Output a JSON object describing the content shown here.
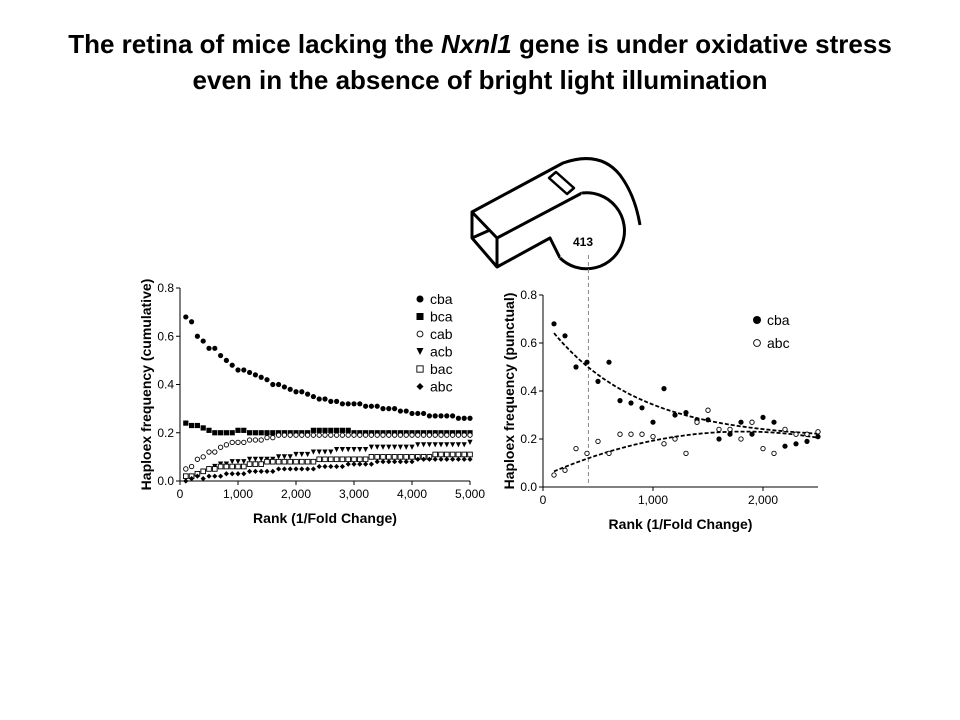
{
  "slide": {
    "title_part1": "The retina of mice lacking the ",
    "title_gene": "Nxnl1",
    "title_part2": " gene is under oxidative stress",
    "title_line2": "even in the absence of bright light illumination",
    "whistle_label": "413"
  },
  "chart_data": [
    {
      "type": "scatter",
      "xlabel": "Rank (1/Fold Change)",
      "ylabel": "Haploex frequency (cumulative)",
      "xlim": [
        0,
        5000
      ],
      "ylim": [
        0,
        0.8
      ],
      "xticks": [
        "0",
        "1,000",
        "2,000",
        "3,000",
        "4,000",
        "5,000"
      ],
      "yticks": [
        "0.0",
        "0.2",
        "0.4",
        "0.6",
        "0.8"
      ],
      "grid": false,
      "legend_position": "top-right",
      "x": [
        100,
        200,
        300,
        400,
        500,
        600,
        700,
        800,
        900,
        1000,
        1100,
        1200,
        1300,
        1400,
        1500,
        1600,
        1700,
        1800,
        1900,
        2000,
        2100,
        2200,
        2300,
        2400,
        2500,
        2600,
        2700,
        2800,
        2900,
        3000,
        3100,
        3200,
        3300,
        3400,
        3500,
        3600,
        3700,
        3800,
        3900,
        4000,
        4100,
        4200,
        4300,
        4400,
        4500,
        4600,
        4700,
        4800,
        4900,
        5000
      ],
      "series": [
        {
          "name": "cba",
          "marker": "filled-circle",
          "values": [
            0.68,
            0.66,
            0.6,
            0.58,
            0.55,
            0.55,
            0.52,
            0.5,
            0.48,
            0.46,
            0.46,
            0.45,
            0.44,
            0.43,
            0.42,
            0.4,
            0.4,
            0.39,
            0.38,
            0.37,
            0.37,
            0.36,
            0.35,
            0.34,
            0.34,
            0.33,
            0.33,
            0.32,
            0.32,
            0.32,
            0.32,
            0.31,
            0.31,
            0.31,
            0.3,
            0.3,
            0.3,
            0.29,
            0.29,
            0.28,
            0.28,
            0.28,
            0.27,
            0.27,
            0.27,
            0.27,
            0.27,
            0.26,
            0.26,
            0.26
          ]
        },
        {
          "name": "bca",
          "marker": "filled-square",
          "values": [
            0.24,
            0.23,
            0.23,
            0.22,
            0.21,
            0.2,
            0.2,
            0.2,
            0.2,
            0.21,
            0.21,
            0.2,
            0.2,
            0.2,
            0.2,
            0.2,
            0.2,
            0.2,
            0.2,
            0.2,
            0.2,
            0.2,
            0.21,
            0.21,
            0.21,
            0.21,
            0.21,
            0.21,
            0.21,
            0.2,
            0.2,
            0.2,
            0.2,
            0.2,
            0.2,
            0.2,
            0.2,
            0.2,
            0.2,
            0.2,
            0.2,
            0.2,
            0.2,
            0.2,
            0.2,
            0.2,
            0.2,
            0.2,
            0.2,
            0.2
          ]
        },
        {
          "name": "cab",
          "marker": "open-circle",
          "values": [
            0.05,
            0.06,
            0.09,
            0.1,
            0.12,
            0.12,
            0.14,
            0.15,
            0.16,
            0.16,
            0.16,
            0.17,
            0.17,
            0.17,
            0.18,
            0.18,
            0.19,
            0.19,
            0.19,
            0.19,
            0.19,
            0.19,
            0.19,
            0.19,
            0.19,
            0.19,
            0.19,
            0.19,
            0.19,
            0.19,
            0.19,
            0.19,
            0.19,
            0.19,
            0.19,
            0.19,
            0.19,
            0.19,
            0.19,
            0.19,
            0.19,
            0.19,
            0.19,
            0.19,
            0.19,
            0.19,
            0.19,
            0.19,
            0.19,
            0.19
          ]
        },
        {
          "name": "acb",
          "marker": "filled-triangle-down",
          "values": [
            0.01,
            0.02,
            0.03,
            0.04,
            0.05,
            0.06,
            0.07,
            0.07,
            0.08,
            0.08,
            0.08,
            0.09,
            0.09,
            0.09,
            0.09,
            0.09,
            0.1,
            0.1,
            0.1,
            0.11,
            0.11,
            0.11,
            0.12,
            0.12,
            0.12,
            0.12,
            0.13,
            0.13,
            0.13,
            0.13,
            0.13,
            0.13,
            0.14,
            0.14,
            0.14,
            0.14,
            0.14,
            0.14,
            0.14,
            0.14,
            0.15,
            0.15,
            0.15,
            0.15,
            0.15,
            0.15,
            0.15,
            0.15,
            0.15,
            0.16
          ]
        },
        {
          "name": "bac",
          "marker": "open-square",
          "values": [
            0.02,
            0.02,
            0.03,
            0.04,
            0.05,
            0.05,
            0.06,
            0.06,
            0.06,
            0.06,
            0.06,
            0.07,
            0.07,
            0.07,
            0.08,
            0.08,
            0.08,
            0.08,
            0.08,
            0.08,
            0.08,
            0.08,
            0.08,
            0.09,
            0.09,
            0.09,
            0.09,
            0.09,
            0.09,
            0.09,
            0.09,
            0.09,
            0.1,
            0.1,
            0.1,
            0.1,
            0.1,
            0.1,
            0.1,
            0.1,
            0.1,
            0.1,
            0.1,
            0.11,
            0.11,
            0.11,
            0.11,
            0.11,
            0.11,
            0.11
          ]
        },
        {
          "name": "abc",
          "marker": "filled-diamond",
          "values": [
            0.0,
            0.01,
            0.02,
            0.01,
            0.02,
            0.02,
            0.02,
            0.03,
            0.03,
            0.03,
            0.03,
            0.04,
            0.04,
            0.04,
            0.04,
            0.04,
            0.05,
            0.05,
            0.05,
            0.05,
            0.05,
            0.05,
            0.05,
            0.06,
            0.06,
            0.06,
            0.06,
            0.06,
            0.07,
            0.07,
            0.07,
            0.07,
            0.07,
            0.08,
            0.08,
            0.08,
            0.08,
            0.08,
            0.08,
            0.08,
            0.09,
            0.09,
            0.09,
            0.09,
            0.09,
            0.09,
            0.09,
            0.09,
            0.09,
            0.09
          ]
        }
      ]
    },
    {
      "type": "scatter",
      "xlabel": "Rank (1/Fold Change)",
      "ylabel": "Haploex frequency (punctual)",
      "xlim": [
        0,
        2500
      ],
      "ylim": [
        0,
        0.8
      ],
      "xticks": [
        "0",
        "1,000",
        "2,000"
      ],
      "yticks": [
        "0.0",
        "0.2",
        "0.4",
        "0.6",
        "0.8"
      ],
      "grid": false,
      "legend_position": "top-right",
      "trendlines": "dashed",
      "vertical_marker_x": 413,
      "x": [
        100,
        200,
        300,
        400,
        500,
        600,
        700,
        800,
        900,
        1000,
        1100,
        1200,
        1300,
        1400,
        1500,
        1600,
        1700,
        1800,
        1900,
        2000,
        2100,
        2200,
        2300,
        2400,
        2500
      ],
      "series": [
        {
          "name": "cba",
          "marker": "filled-circle",
          "values": [
            0.68,
            0.63,
            0.5,
            0.52,
            0.44,
            0.52,
            0.36,
            0.35,
            0.33,
            0.27,
            0.41,
            0.3,
            0.31,
            0.28,
            0.28,
            0.2,
            0.22,
            0.27,
            0.22,
            0.29,
            0.27,
            0.17,
            0.18,
            0.19,
            0.21
          ]
        },
        {
          "name": "abc",
          "marker": "open-circle",
          "values": [
            0.05,
            0.07,
            0.16,
            0.14,
            0.19,
            0.14,
            0.22,
            0.22,
            0.22,
            0.21,
            0.18,
            0.2,
            0.14,
            0.27,
            0.32,
            0.24,
            0.24,
            0.2,
            0.27,
            0.16,
            0.14,
            0.24,
            0.22,
            0.22,
            0.23
          ]
        }
      ]
    }
  ]
}
